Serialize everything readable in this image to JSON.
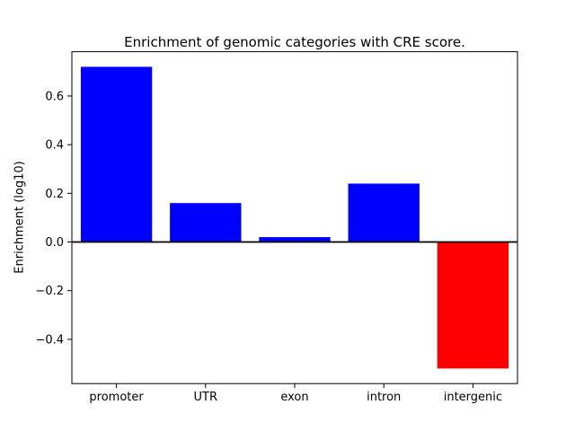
{
  "chart_data": {
    "type": "bar",
    "title": "Enrichment of genomic categories with CRE score.",
    "ylabel": "Enrichment (log10)",
    "xlabel": "",
    "categories": [
      "promoter",
      "UTR",
      "exon",
      "intron",
      "intergenic"
    ],
    "values": [
      0.72,
      0.16,
      0.02,
      0.24,
      -0.52
    ],
    "bar_colors": [
      "#0000ff",
      "#0000ff",
      "#0000ff",
      "#0000ff",
      "#ff0000"
    ],
    "positive_color": "#0000ff",
    "negative_color": "#ff0000",
    "ylim": [
      -0.582,
      0.782
    ],
    "yticks": [
      -0.4,
      -0.2,
      0.0,
      0.2,
      0.4,
      0.6
    ],
    "zero_line": true,
    "grid": false,
    "legend_position": "none",
    "axis_color": "#000000",
    "background_color": "#ffffff"
  }
}
